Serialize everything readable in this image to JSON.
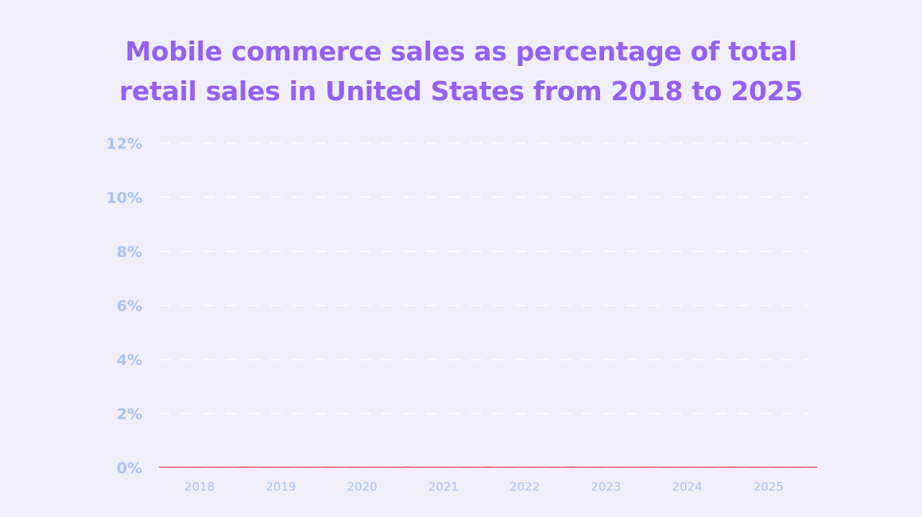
{
  "chart_data": {
    "type": "bar",
    "title_lines": [
      "Mobile commerce sales as percentage of total",
      "retail sales in United States from 2018 to 2025"
    ],
    "categories": [
      "2018",
      "2019",
      "2020",
      "2021",
      "2022",
      "2023",
      "2024",
      "2025"
    ],
    "values": [
      0,
      0,
      0,
      0,
      0,
      0,
      0,
      0
    ],
    "y_ticks": [
      "0%",
      "2%",
      "4%",
      "6%",
      "8%",
      "10%",
      "12%"
    ],
    "ylim": [
      0,
      12
    ],
    "grid": true,
    "xlabel": "",
    "ylabel": "",
    "colors": {
      "title": "#9461f3",
      "tick_label": "#a9c3f5",
      "gridline": "#ffffff",
      "bar": "#e0405a",
      "background": "#f0eff9"
    }
  }
}
